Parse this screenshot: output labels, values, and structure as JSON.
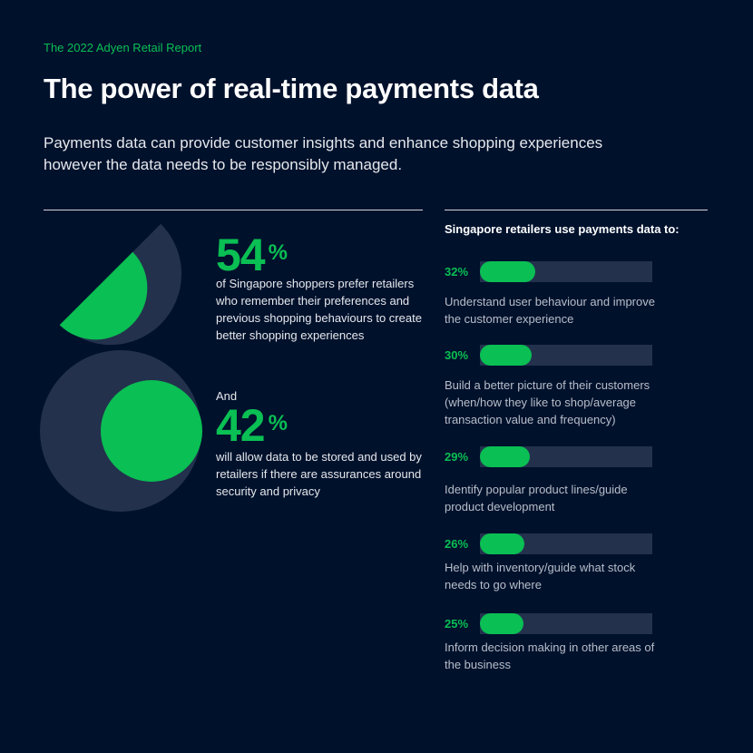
{
  "header": {
    "eyebrow": "The 2022 Adyen Retail Report",
    "title": "The power of real-time payments data",
    "subtitle": "Payments data can provide customer insights and enhance shopping experiences however the data needs to be responsibly managed."
  },
  "colors": {
    "background": "#00112c",
    "accent": "#0abf53",
    "track": "#23314d"
  },
  "left": {
    "stat1": {
      "value": "54",
      "unit": "%",
      "text": "of Singapore shoppers prefer retailers who remember their preferences and previous shopping behaviours to create better shopping experiences"
    },
    "connector": "And",
    "stat2": {
      "value": "42",
      "unit": "%",
      "text": "will allow data to be stored and used by retailers if there are assurances around security and privacy"
    }
  },
  "chart_data": {
    "type": "bar",
    "title": "Singapore retailers use payments data to:",
    "orientation": "horizontal",
    "xlim": [
      0,
      100
    ],
    "categories": [
      "Understand user behaviour and improve the customer experience",
      "Build a better picture of their customers (when/how they like to shop/average transaction value and frequency)",
      "Identify popular product lines/guide product development",
      "Help with inventory/guide what stock needs to go where",
      "Inform decision making in other areas of the business"
    ],
    "values": [
      32,
      30,
      29,
      26,
      25
    ],
    "labels": [
      "32%",
      "30%",
      "29%",
      "26%",
      "25%"
    ]
  }
}
